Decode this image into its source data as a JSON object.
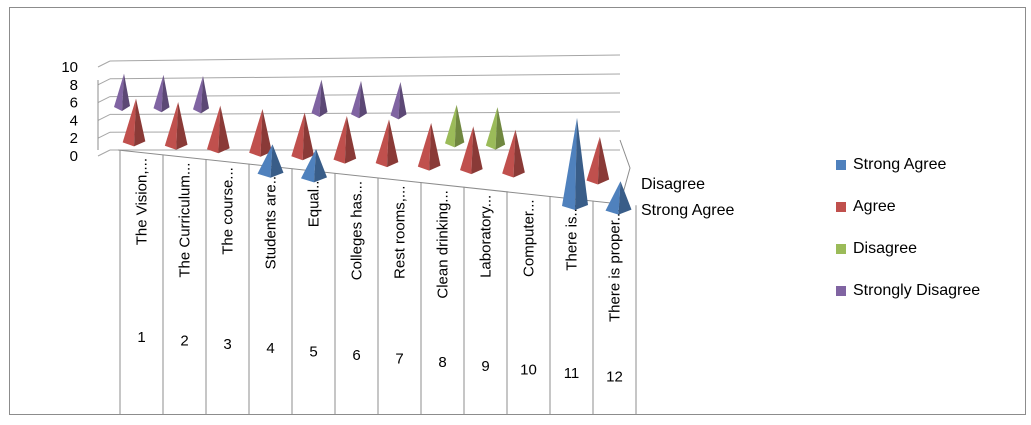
{
  "chart_data": {
    "type": "bar",
    "style": "3d-pyramid",
    "categories": [
      {
        "index": "1",
        "label": "The Vision,..."
      },
      {
        "index": "2",
        "label": "The Curriculum..."
      },
      {
        "index": "3",
        "label": "The course..."
      },
      {
        "index": "4",
        "label": "Students are..."
      },
      {
        "index": "5",
        "label": "Equal..."
      },
      {
        "index": "6",
        "label": "Colleges has..."
      },
      {
        "index": "7",
        "label": "Rest rooms,..."
      },
      {
        "index": "8",
        "label": "Clean drinking..."
      },
      {
        "index": "9",
        "label": "Laboratory..."
      },
      {
        "index": "10",
        "label": "Computer..."
      },
      {
        "index": "11",
        "label": "There is..."
      },
      {
        "index": "12",
        "label": "There is proper..."
      }
    ],
    "series": [
      {
        "name": "Strong Agree",
        "color": "#4F81BD",
        "values": [
          0,
          0,
          0,
          3,
          3,
          0,
          0,
          0,
          0,
          0,
          9,
          3
        ]
      },
      {
        "name": "Agree",
        "color": "#C0504D",
        "values": [
          5,
          5,
          5,
          5,
          5,
          5,
          5,
          5,
          5,
          5,
          0,
          5
        ]
      },
      {
        "name": "Disagree",
        "color": "#9BBB59",
        "values": [
          0,
          0,
          0,
          0,
          0,
          0,
          0,
          0,
          5,
          5,
          0,
          0
        ]
      },
      {
        "name": "Strongly Disagree",
        "color": "#8064A2",
        "values": [
          5,
          5,
          5,
          0,
          0,
          5,
          5,
          5,
          0,
          0,
          0,
          0
        ]
      }
    ],
    "depth_axis_labels": [
      "Disagree",
      "Strong Agree"
    ],
    "y_ticks": [
      "0",
      "2",
      "4",
      "6",
      "8",
      "10"
    ],
    "ylim": [
      0,
      10
    ],
    "grid": true,
    "legend_position": "right",
    "title": "",
    "xlabel": "",
    "ylabel": ""
  }
}
